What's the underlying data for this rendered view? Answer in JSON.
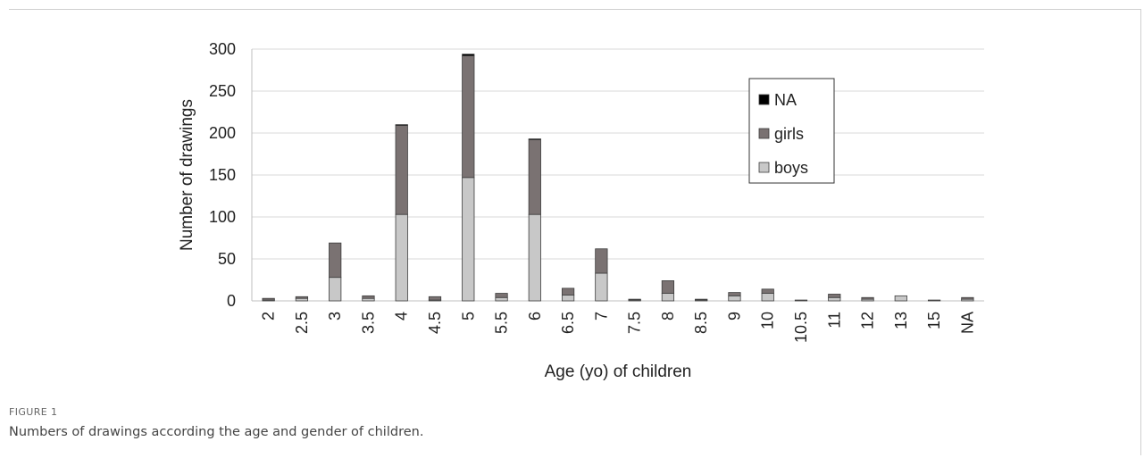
{
  "figure": {
    "label": "FIGURE 1",
    "caption": "Numbers of drawings according the age and gender of children."
  },
  "colors": {
    "boys": "#c8c8c8",
    "girls": "#7a7272",
    "NA": "#000000",
    "grid": "#d9d9d9",
    "bar_border": "#3c3c3c"
  },
  "chart_data": {
    "type": "bar",
    "stacked": true,
    "title": "",
    "xlabel": "Age (yo) of children",
    "ylabel": "Number of drawings",
    "ylim": [
      0,
      300
    ],
    "yticks": [
      0,
      50,
      100,
      150,
      200,
      250,
      300
    ],
    "grid": true,
    "legend_position": "top-right",
    "categories": [
      "2",
      "2.5",
      "3",
      "3.5",
      "4",
      "4.5",
      "5",
      "5.5",
      "6",
      "6.5",
      "7",
      "7.5",
      "8",
      "8.5",
      "9",
      "10",
      "10.5",
      "11",
      "12",
      "13",
      "15",
      "NA"
    ],
    "series": [
      {
        "name": "boys",
        "values": [
          1,
          3,
          28,
          3,
          103,
          1,
          147,
          4,
          103,
          7,
          33,
          1,
          9,
          1,
          6,
          9,
          0,
          4,
          2,
          6,
          0,
          2
        ]
      },
      {
        "name": "girls",
        "values": [
          2,
          2,
          41,
          3,
          106,
          4,
          145,
          5,
          89,
          8,
          29,
          1,
          15,
          1,
          4,
          5,
          1,
          4,
          2,
          0,
          1,
          2
        ]
      },
      {
        "name": "NA",
        "values": [
          0,
          0,
          0,
          0,
          1,
          0,
          2,
          0,
          1,
          0,
          0,
          0,
          0,
          0,
          0,
          0,
          0,
          0,
          0,
          0,
          0,
          0
        ]
      }
    ],
    "legend_order": [
      "NA",
      "girls",
      "boys"
    ]
  }
}
